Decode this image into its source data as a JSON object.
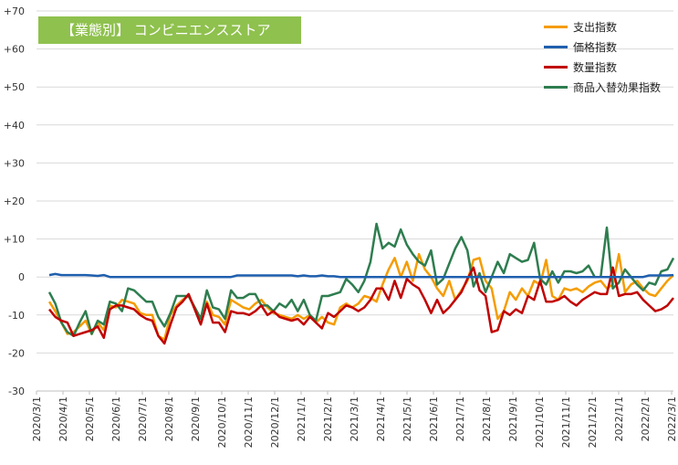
{
  "chart_data": {
    "type": "line",
    "title": "【業態別】 コンビニエンスストア",
    "xlabel": "",
    "ylabel": "",
    "ylim": [
      -30,
      70
    ],
    "yticks": [
      70,
      60,
      50,
      40,
      30,
      20,
      10,
      0,
      -10,
      -20,
      -30
    ],
    "ytick_labels": [
      "+70",
      "+60",
      "+50",
      "+40",
      "+30",
      "+20",
      "+10",
      "0",
      "-10",
      "-20",
      "-30"
    ],
    "xticks": [
      "2020/3/1",
      "2020/4/1",
      "2020/5/1",
      "2020/6/1",
      "2020/7/1",
      "2020/8/1",
      "2020/9/1",
      "2020/10/1",
      "2020/11/1",
      "2020/12/1",
      "2021/1/1",
      "2021/2/1",
      "2021/3/1",
      "2021/4/1",
      "2021/5/1",
      "2021/6/1",
      "2021/7/1",
      "2021/8/1",
      "2021/9/1",
      "2021/10/1",
      "2021/11/1",
      "2021/12/1",
      "2022/1/1",
      "2022/2/1",
      "2022/3/1"
    ],
    "x_start": "2020/3/1",
    "x_end": "2022/3/1",
    "grid": "horizontal",
    "legend_position": "top-right",
    "series": [
      {
        "name": "支出指数",
        "color": "#f59c00",
        "values": [
          -6.5,
          -9,
          -12,
          -15,
          -14.5,
          -13,
          -11.5,
          -15,
          -12,
          -14,
          -7.5,
          -8,
          -6,
          -6.5,
          -7,
          -9.5,
          -10,
          -10,
          -15.5,
          -16.5,
          -10,
          -7.5,
          -6,
          -5,
          -8,
          -11,
          -6.5,
          -10,
          -10.5,
          -12.5,
          -6,
          -7,
          -8,
          -8.5,
          -7,
          -6,
          -8,
          -9.5,
          -10,
          -10.5,
          -11,
          -10,
          -11,
          -10,
          -12,
          -10.5,
          -12,
          -12.5,
          -8,
          -7,
          -8,
          -7,
          -5,
          -5.5,
          -6.5,
          -2,
          2,
          5,
          0,
          4,
          -1,
          6,
          2,
          0,
          -3,
          -5,
          -1,
          -6,
          -3.5,
          -1,
          4.5,
          5,
          -1,
          -3,
          -11,
          -9,
          -4,
          -6,
          -3,
          -5,
          -1,
          -2,
          4.5,
          -5,
          -6,
          -3,
          -3.5,
          -3,
          -4,
          -2.5,
          -1.5,
          -1,
          -3,
          -2,
          6,
          -4,
          -2,
          -1,
          -3,
          -4.5,
          -5,
          -3,
          -1,
          0.5
        ]
      },
      {
        "name": "価格指数",
        "color": "#1f5fae",
        "values": [
          0.5,
          0.8,
          0.5,
          0.5,
          0.5,
          0.5,
          0.5,
          0.4,
          0.3,
          0.5,
          0,
          0,
          0,
          0,
          0,
          0,
          0,
          0,
          0,
          0,
          0,
          0,
          0,
          0,
          0,
          0,
          0,
          0,
          0,
          0,
          0,
          0.4,
          0.4,
          0.4,
          0.4,
          0.4,
          0.4,
          0.4,
          0.4,
          0.4,
          0.4,
          0.2,
          0.4,
          0.2,
          0.2,
          0.4,
          0.2,
          0.2,
          0,
          0,
          0,
          0,
          0,
          0,
          0,
          0,
          0,
          0,
          0,
          0,
          0,
          0,
          0,
          0,
          0,
          0,
          0,
          0,
          0,
          0,
          0,
          0,
          0,
          0,
          0,
          0,
          0,
          0,
          0,
          0,
          0,
          0,
          0,
          0,
          0,
          0,
          0,
          0,
          0,
          0,
          0,
          0,
          0,
          0,
          0,
          0,
          0,
          0,
          0,
          0.4,
          0.4,
          0.4,
          0.4,
          0.5
        ]
      },
      {
        "name": "数量指数",
        "color": "#c00000",
        "values": [
          -8.5,
          -10.5,
          -11.5,
          -12,
          -15.5,
          -15,
          -14.5,
          -14,
          -13,
          -16,
          -8.5,
          -7.5,
          -7.5,
          -8,
          -8.5,
          -10,
          -11,
          -11.5,
          -15.5,
          -17.5,
          -12.5,
          -8,
          -6.5,
          -4.5,
          -8.5,
          -12.5,
          -7,
          -12,
          -12,
          -14.5,
          -9,
          -9.5,
          -9.5,
          -10,
          -9,
          -7.5,
          -10,
          -9,
          -10.5,
          -11,
          -11.5,
          -11,
          -12.5,
          -10.5,
          -12,
          -13.5,
          -9.5,
          -10.5,
          -9,
          -7.5,
          -8,
          -9,
          -8,
          -6,
          -3,
          -3,
          -6,
          -1,
          -5.5,
          -0.5,
          -2,
          -3,
          -6,
          -9.5,
          -6,
          -9.5,
          -8,
          -6,
          -4,
          -0.5,
          2.5,
          -3.5,
          -5,
          -14.5,
          -14,
          -9,
          -10,
          -8.5,
          -9.5,
          -5,
          -6,
          -1,
          -6.5,
          -6.5,
          -6,
          -5,
          -6.5,
          -7.5,
          -6,
          -5,
          -4,
          -4.5,
          -4.5,
          2.5,
          -5,
          -4.5,
          -4.5,
          -4,
          -6,
          -7.5,
          -9,
          -8.5,
          -7.5,
          -5.5
        ]
      },
      {
        "name": "商品入替効果指数",
        "color": "#2e7d4f",
        "values": [
          -4,
          -7,
          -12,
          -14.5,
          -15.5,
          -12,
          -9,
          -15,
          -11.5,
          -12.5,
          -6.5,
          -7,
          -9,
          -3,
          -3.5,
          -5,
          -6.5,
          -6.5,
          -10.5,
          -13,
          -9.5,
          -5,
          -5,
          -5,
          -8,
          -11,
          -3.5,
          -8,
          -8.5,
          -11,
          -3.5,
          -5.5,
          -5.5,
          -4.5,
          -4.5,
          -7.5,
          -7.5,
          -9,
          -7,
          -8,
          -6,
          -9,
          -6,
          -10,
          -11.5,
          -5,
          -5,
          -4.5,
          -4,
          -0.5,
          -2,
          -4,
          -1,
          4,
          14,
          7.5,
          9,
          8,
          12.5,
          8.5,
          6,
          4,
          3,
          7,
          -2,
          -0.5,
          3.5,
          7.5,
          10.5,
          7,
          -2.5,
          1,
          -4,
          0,
          4,
          1,
          6,
          5,
          4,
          4.5,
          9,
          -0.5,
          -2,
          1.5,
          -1.5,
          1.5,
          1.5,
          1,
          1.5,
          3,
          0,
          0,
          13,
          -3,
          -1.5,
          2,
          0,
          -2,
          -3.5,
          -1.5,
          -2,
          1.5,
          2,
          5
        ]
      }
    ]
  }
}
